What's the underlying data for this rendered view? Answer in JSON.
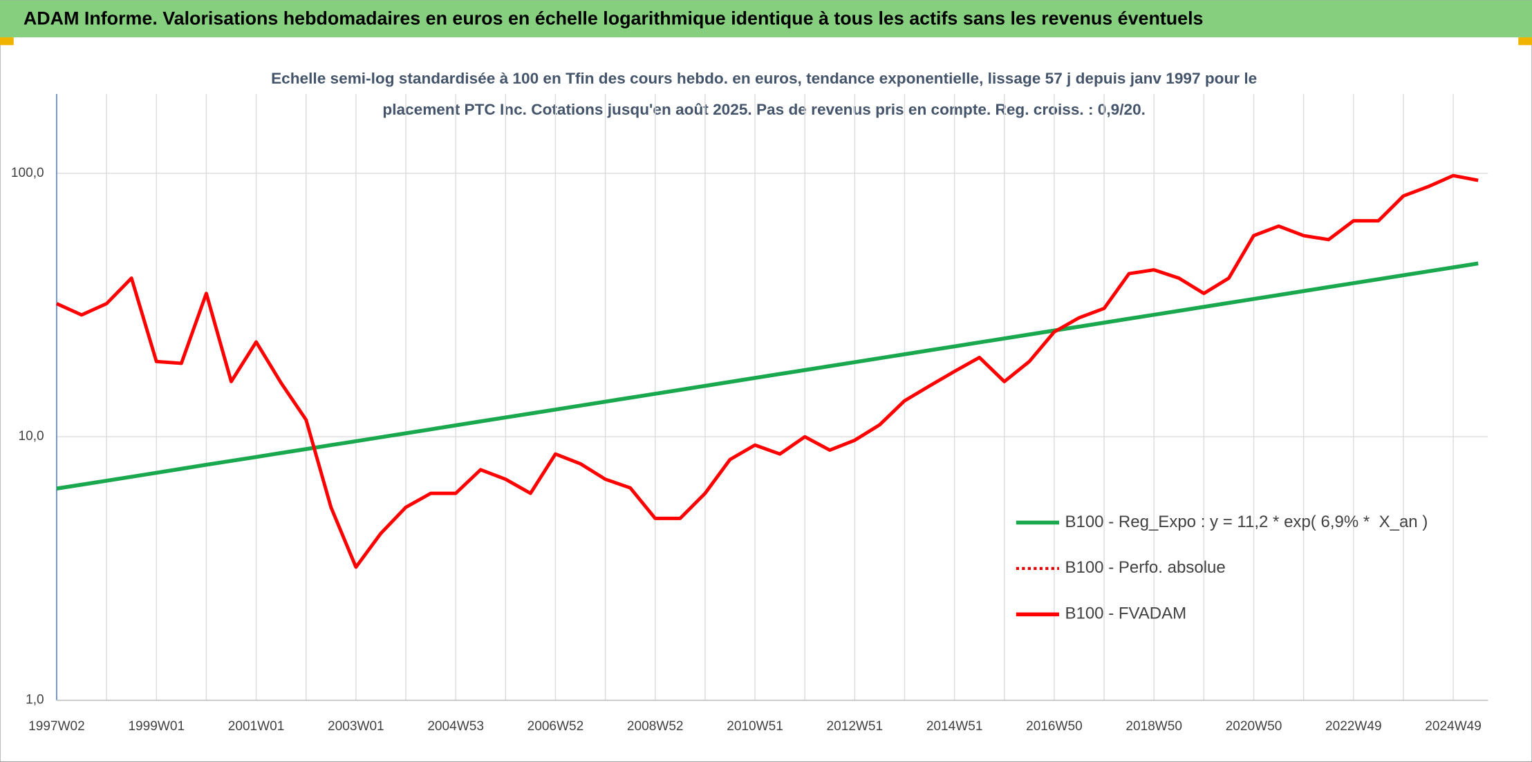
{
  "chart_data": {
    "type": "line",
    "title": "ADAM Informe. Valorisations hebdomadaires en euros en échelle logarithmique identique à tous les actifs sans les revenus éventuels",
    "subtitle": [
      "Echelle semi-log standardisée à 100 en Tfin des cours hebdo. en euros, tendance exponentielle, lissage 57 j depuis janv 1997 pour le",
      "placement PTC Inc. Cotations jusqu'en août 2025. Pas de revenus pris en compte. Reg. croiss. : 0,9/20."
    ],
    "categories": [
      "1997W02",
      null,
      null,
      null,
      "1999W01",
      null,
      null,
      null,
      "2001W01",
      null,
      null,
      null,
      "2003W01",
      null,
      null,
      null,
      "2004W53",
      null,
      null,
      null,
      "2006W52",
      null,
      null,
      null,
      "2008W52",
      null,
      null,
      null,
      "2010W51",
      null,
      null,
      null,
      "2012W51",
      null,
      null,
      null,
      "2014W51",
      null,
      null,
      null,
      "2016W50",
      null,
      null,
      null,
      "2018W50",
      null,
      null,
      null,
      "2020W50",
      null,
      null,
      null,
      "2022W49",
      null,
      null,
      null,
      "2024W49",
      null
    ],
    "series": [
      {
        "name": "B100 - Reg_Expo : y = 11,2 * exp( 6,9% *  X_an )",
        "color": "#1aa84f",
        "style": "solid",
        "values": [
          6.36,
          6.58,
          6.81,
          7.05,
          7.3,
          7.56,
          7.83,
          8.1,
          8.38,
          8.68,
          8.98,
          9.3,
          9.62,
          9.96,
          10.31,
          10.67,
          11.05,
          11.44,
          11.84,
          12.25,
          12.68,
          13.13,
          13.59,
          14.07,
          14.56,
          15.07,
          15.6,
          16.15,
          16.72,
          17.31,
          17.91,
          18.54,
          19.19,
          19.87,
          20.56,
          21.29,
          22.03,
          22.81,
          23.61,
          24.44,
          25.3,
          26.18,
          27.1,
          28.06,
          29.04,
          30.06,
          31.12,
          32.21,
          33.34,
          34.51,
          35.72,
          36.98,
          38.28,
          39.62,
          41.01,
          42.45,
          43.94,
          45.48
        ]
      },
      {
        "name": "B100 - Perfo. absolue",
        "color": "#e00000",
        "style": "dotted",
        "values": [
          32,
          29,
          32,
          40,
          19.3,
          19,
          35,
          16.2,
          22.9,
          16,
          11.6,
          5.4,
          3.2,
          4.3,
          5.4,
          6.1,
          6.1,
          7.5,
          6.9,
          6.1,
          8.6,
          7.9,
          6.9,
          6.4,
          4.9,
          4.9,
          6.1,
          8.2,
          9.3,
          8.6,
          10,
          8.9,
          9.7,
          11.1,
          13.7,
          15.6,
          17.7,
          20,
          16.2,
          19.3,
          25,
          28.3,
          30.7,
          41.6,
          43,
          40,
          35,
          40,
          58,
          63,
          58,
          56,
          66,
          66,
          82,
          89,
          98,
          94
        ]
      },
      {
        "name": "B100 - FVADAM",
        "color": "#ff0000",
        "style": "solid",
        "values": [
          32,
          29,
          32,
          40,
          19.3,
          19,
          35,
          16.2,
          22.9,
          16,
          11.6,
          5.4,
          3.2,
          4.3,
          5.4,
          6.1,
          6.1,
          7.5,
          6.9,
          6.1,
          8.6,
          7.9,
          6.9,
          6.4,
          4.9,
          4.9,
          6.1,
          8.2,
          9.3,
          8.6,
          10,
          8.9,
          9.7,
          11.1,
          13.7,
          15.6,
          17.7,
          20,
          16.2,
          19.3,
          25,
          28.3,
          30.7,
          41.6,
          43,
          40,
          35,
          40,
          58,
          63,
          58,
          56,
          66,
          66,
          82,
          89,
          98,
          94
        ]
      }
    ],
    "log_y": true,
    "ylim": [
      1,
      200
    ],
    "yticks": [
      {
        "value": 1,
        "label": "1,0"
      },
      {
        "value": 10,
        "label": "10,0"
      },
      {
        "value": 100,
        "label": "100,0"
      }
    ],
    "grid": true,
    "legend": "lower right"
  }
}
